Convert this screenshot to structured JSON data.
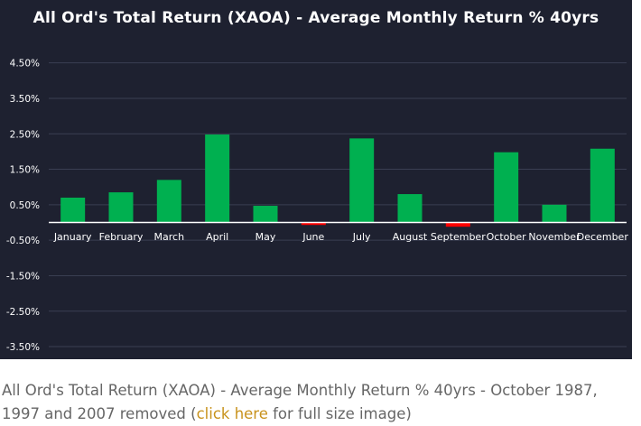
{
  "chart_data": {
    "type": "bar",
    "title": "All Ord's Total Return (XAOA) - Average Monthly Return % 40yrs",
    "categories": [
      "January",
      "February",
      "March",
      "April",
      "May",
      "June",
      "July",
      "August",
      "September",
      "October",
      "November",
      "December"
    ],
    "values": [
      0.7,
      0.85,
      1.2,
      2.48,
      0.47,
      -0.07,
      2.37,
      0.8,
      -0.12,
      1.98,
      0.5,
      2.08
    ],
    "yticks": [
      4.5,
      3.5,
      2.5,
      1.5,
      0.5,
      -0.5,
      -1.5,
      -2.5,
      -3.5
    ],
    "ytick_labels": [
      "4.50%",
      "3.50%",
      "2.50%",
      "1.50%",
      "0.50%",
      "-0.50%",
      "-1.50%",
      "-2.50%",
      "-3.50%"
    ],
    "ylim": [
      -4.0,
      5.0
    ],
    "grid": true,
    "colors": {
      "positive": "#00b050",
      "negative": "#ff0000",
      "background": "#1e2130",
      "grid": "#3a3f52",
      "axis": "#ffffff",
      "text": "#ffffff"
    }
  },
  "caption": {
    "text_before": "All Ord's Total Return (XAOA) - Average Monthly Return % 40yrs - October 1987, 1997 and 2007 removed (",
    "link_text": "click here",
    "text_after": " for full size image)"
  }
}
